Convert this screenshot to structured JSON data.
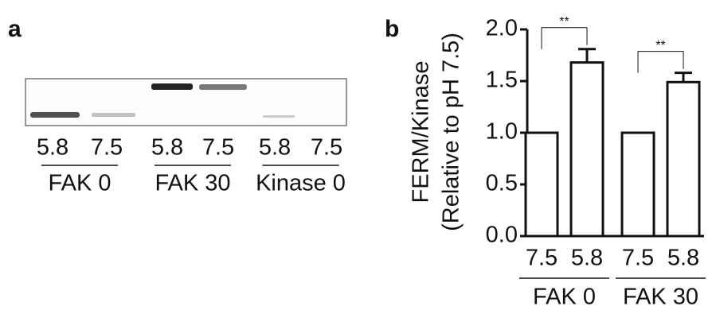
{
  "panel_a": {
    "label": "a",
    "lanes": [
      "5.8",
      "7.5",
      "5.8",
      "7.5",
      "5.8",
      "7.5"
    ],
    "groups": [
      "FAK 0",
      "FAK 30",
      "Kinase 0"
    ]
  },
  "chart_data": {
    "type": "bar",
    "panel_label": "b",
    "y_label": [
      "FERM/Kinase",
      "(Relative to pH 7.5)"
    ],
    "categories": [
      "7.5",
      "5.8",
      "7.5",
      "5.8"
    ],
    "groups": [
      "FAK 0",
      "FAK 30"
    ],
    "values": [
      1.0,
      1.68,
      1.0,
      1.49
    ],
    "errors": [
      null,
      0.13,
      null,
      0.09
    ],
    "annotations": [
      "**",
      "**"
    ],
    "color": "#ffffff",
    "ylim": [
      0,
      2
    ],
    "yticks": [
      {
        "value": 0,
        "label": "0.0"
      },
      0.5,
      {
        "value": 1,
        "label": "1.0"
      },
      1.5,
      {
        "value": 2,
        "label": "2.0"
      }
    ]
  }
}
